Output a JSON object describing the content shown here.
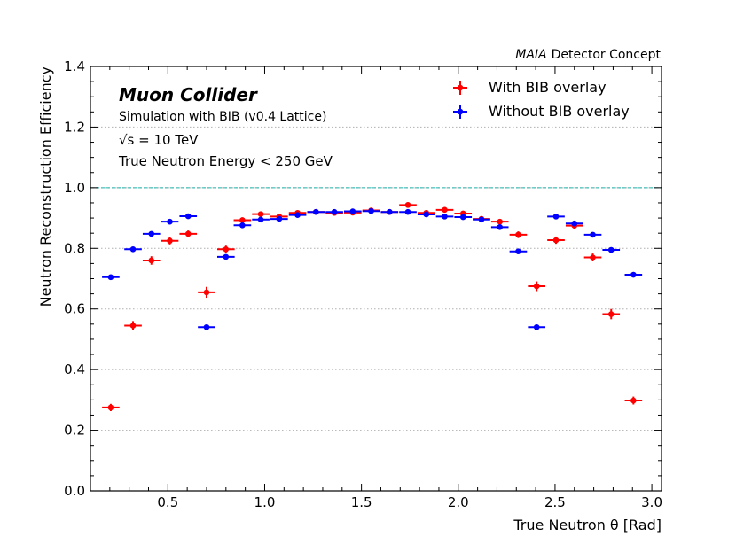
{
  "chart_data": {
    "type": "scatter",
    "experiment_label": {
      "italic": "MAIA",
      "rest": "Detector Concept"
    },
    "inner_title": "Muon Collider",
    "inner_lines": [
      "Simulation with BIB (v0.4 Lattice)",
      "√s = 10 TeV",
      "True Neutron Energy < 250 GeV"
    ],
    "xlabel": "True Neutron θ [Rad]",
    "ylabel": "Neutron Reconstruction Efficiency",
    "xlim": [
      0.1,
      3.05
    ],
    "ylim": [
      0.0,
      1.4
    ],
    "xticks": [
      0.5,
      1.0,
      1.5,
      2.0,
      2.5,
      3.0
    ],
    "xtick_labels": [
      "0.5",
      "1.0",
      "1.5",
      "2.0",
      "2.5",
      "3.0"
    ],
    "yticks": [
      0.0,
      0.2,
      0.4,
      0.6,
      0.8,
      1.0,
      1.2,
      1.4
    ],
    "ytick_labels": [
      "0.0",
      "0.2",
      "0.4",
      "0.6",
      "0.8",
      "1.0",
      "1.2",
      "1.4"
    ],
    "grid": "horizontal dotted",
    "reference_line": 1.0,
    "legend_position": "top-right",
    "bin_half_width": 0.045,
    "series": [
      {
        "name": "With BIB overlay",
        "color": "#ff0000",
        "x": [
          0.205,
          0.32,
          0.415,
          0.51,
          0.605,
          0.7,
          0.8,
          0.885,
          0.98,
          1.075,
          1.17,
          1.265,
          1.36,
          1.455,
          1.55,
          1.645,
          1.74,
          1.835,
          1.93,
          2.025,
          2.12,
          2.215,
          2.31,
          2.405,
          2.505,
          2.6,
          2.695,
          2.79,
          2.905
        ],
        "y": [
          0.275,
          0.545,
          0.76,
          0.825,
          0.848,
          0.655,
          0.797,
          0.893,
          0.913,
          0.905,
          0.917,
          0.92,
          0.917,
          0.918,
          0.925,
          0.92,
          0.943,
          0.917,
          0.927,
          0.915,
          0.897,
          0.888,
          0.845,
          0.675,
          0.827,
          0.875,
          0.77,
          0.583,
          0.298
        ],
        "yerr": [
          0.012,
          0.015,
          0.014,
          0.012,
          0.011,
          0.018,
          0.012,
          0.009,
          0.008,
          0.008,
          0.008,
          0.008,
          0.008,
          0.008,
          0.008,
          0.008,
          0.008,
          0.008,
          0.008,
          0.008,
          0.009,
          0.009,
          0.011,
          0.016,
          0.012,
          0.012,
          0.013,
          0.017,
          0.013
        ]
      },
      {
        "name": "Without BIB overlay",
        "color": "#0000ff",
        "x": [
          0.205,
          0.32,
          0.415,
          0.51,
          0.605,
          0.7,
          0.8,
          0.885,
          0.98,
          1.075,
          1.17,
          1.265,
          1.36,
          1.455,
          1.55,
          1.645,
          1.74,
          1.835,
          1.93,
          2.025,
          2.12,
          2.215,
          2.31,
          2.405,
          2.505,
          2.6,
          2.695,
          2.79,
          2.905
        ],
        "y": [
          0.705,
          0.797,
          0.848,
          0.888,
          0.906,
          0.54,
          0.772,
          0.876,
          0.895,
          0.897,
          0.91,
          0.92,
          0.92,
          0.922,
          0.923,
          0.92,
          0.92,
          0.912,
          0.905,
          0.903,
          0.895,
          0.87,
          0.79,
          0.54,
          0.905,
          0.882,
          0.845,
          0.795,
          0.713
        ]
      }
    ]
  }
}
